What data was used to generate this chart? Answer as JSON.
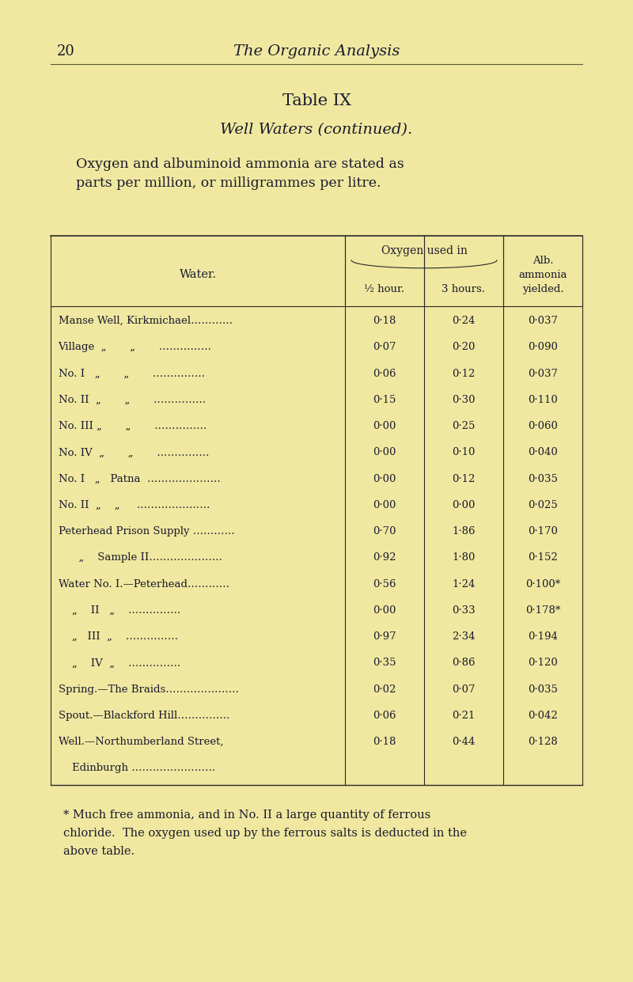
{
  "bg_color": "#f0e8a0",
  "page_num": "20",
  "header_title": "The Organic Analysis",
  "table_title_1": "Table IX",
  "table_title_2": "Well Waters (continued).",
  "description": "Oxygen and albuminoid ammonia are stated as\nparts per million, or milligrammes per litre.",
  "col_header_water": "Water.",
  "col_header_oxygen": "Oxygen used in",
  "col_header_half_hour": "½ hour.",
  "col_header_3_hours": "3 hours.",
  "col_header_alb": "Alb.\nammonia\nyielded.",
  "rows": [
    [
      "Manse Well, Kirkmichael…………",
      "0·18",
      "0·24",
      "0·037"
    ],
    [
      "Village  „       „       ……………",
      "0·07",
      "0·20",
      "0·090"
    ],
    [
      "No. I   „       „       ……………",
      "0·06",
      "0·12",
      "0·037"
    ],
    [
      "No. II  „       „       ……………",
      "0·15",
      "0·30",
      "0·110"
    ],
    [
      "No. III „       „       ……………",
      "0·00",
      "0·25",
      "0·060"
    ],
    [
      "No. IV  „       „       ……………",
      "0·00",
      "0·10",
      "0·040"
    ],
    [
      "No. I   „   Patna  …………………",
      "0·00",
      "0·12",
      "0·035"
    ],
    [
      "No. II  „    „     …………………",
      "0·00",
      "0·00",
      "0·025"
    ],
    [
      "Peterhead Prison Supply …………",
      "0·70",
      "1·86",
      "0·170"
    ],
    [
      "      „    Sample II…………………",
      "0·92",
      "1·80",
      "0·152"
    ],
    [
      "Water No. I.—Peterhead…………",
      "0·56",
      "1·24",
      "0·100*"
    ],
    [
      "    „    II   „    ……………",
      "0·00",
      "0·33",
      "0·178*"
    ],
    [
      "    „   III  „    ……………",
      "0·97",
      "2·34",
      "0·194"
    ],
    [
      "    „    IV  „    ……………",
      "0·35",
      "0·86",
      "0·120"
    ],
    [
      "Spring.—The Braids…………………",
      "0·02",
      "0·07",
      "0·035"
    ],
    [
      "Spout.—Blackford Hill……………",
      "0·06",
      "0·21",
      "0·042"
    ],
    [
      "Well.—Northumberland Street,",
      "0·18",
      "0·44",
      "0·128"
    ],
    [
      "    Edinburgh ……………………",
      "",
      "",
      ""
    ]
  ],
  "footnote": "* Much free ammonia, and in No. II a large quantity of ferrous\nchloride.  The oxygen used up by the ferrous salts is deducted in the\nabove table."
}
